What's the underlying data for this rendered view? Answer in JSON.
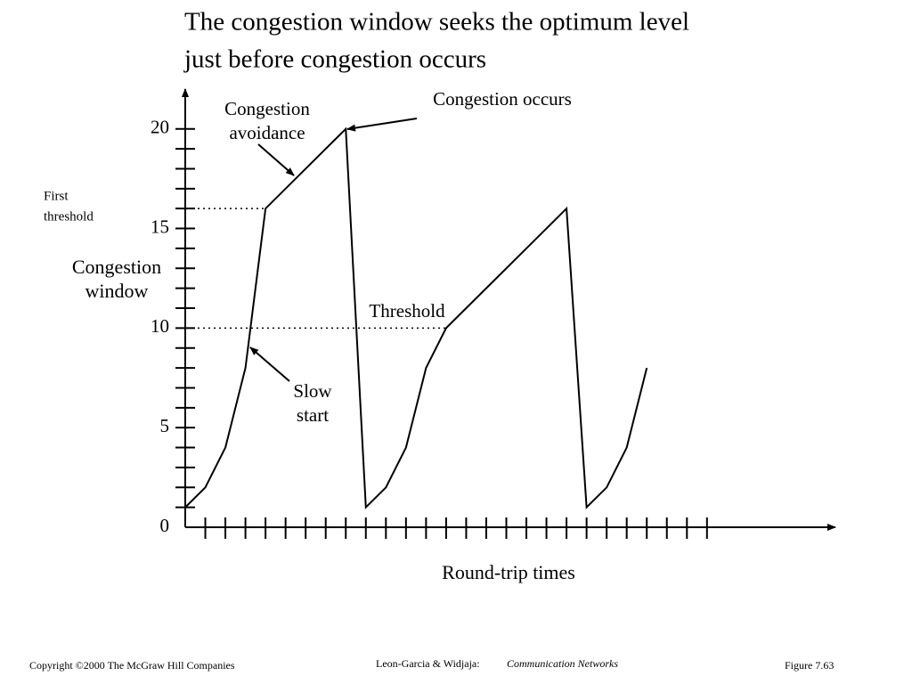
{
  "chart_data": {
    "type": "line",
    "title": [
      "The congestion window seeks the optimum level",
      "just before congestion occurs"
    ],
    "x_label": "Round-trip times",
    "y_label": [
      "Congestion",
      "window"
    ],
    "xlim": [
      0,
      32.4
    ],
    "ylim": [
      0,
      22
    ],
    "yticks": [
      0,
      5,
      10,
      15,
      20
    ],
    "ytick_marks": [
      1,
      2,
      3,
      4,
      5,
      6,
      7,
      8,
      9,
      10,
      11,
      12,
      13,
      14,
      15,
      16,
      17,
      18,
      19,
      20
    ],
    "xtick_marks": [
      1,
      2,
      3,
      4,
      5,
      6,
      7,
      8,
      9,
      10,
      11,
      12,
      13,
      14,
      15,
      16,
      17,
      18,
      19,
      20,
      21,
      22,
      23,
      24,
      25,
      26
    ],
    "series": [
      {
        "color": "#000000",
        "x": [
          0,
          1,
          2,
          3,
          4,
          5,
          6,
          7,
          8,
          9,
          10,
          11,
          12,
          13,
          14,
          15,
          16,
          17,
          18,
          19,
          20,
          21,
          22,
          23
        ],
        "values": [
          1,
          2,
          4,
          8,
          16,
          17,
          18,
          19,
          20,
          1,
          2,
          4,
          8,
          10,
          11,
          12,
          13,
          14,
          15,
          16,
          1,
          2,
          4,
          8
        ]
      }
    ],
    "thresholds": [
      {
        "lines": [
          "First",
          "threshold"
        ],
        "value": 16,
        "x_end": 4
      },
      {
        "lines": [
          "Threshold"
        ],
        "value": 10,
        "x_end": 13
      }
    ],
    "annotations": [
      {
        "lines": [
          "Congestion",
          "avoidance"
        ]
      },
      {
        "lines": [
          "Congestion occurs"
        ]
      },
      {
        "lines": [
          "Slow",
          "start"
        ]
      }
    ]
  },
  "footer": {
    "copyright": "Copyright ©2000 The McGraw Hill Companies",
    "authors": "Leon-Garcia & Widjaja:",
    "book": "Communication Networks",
    "figure": "Figure 7.63"
  }
}
